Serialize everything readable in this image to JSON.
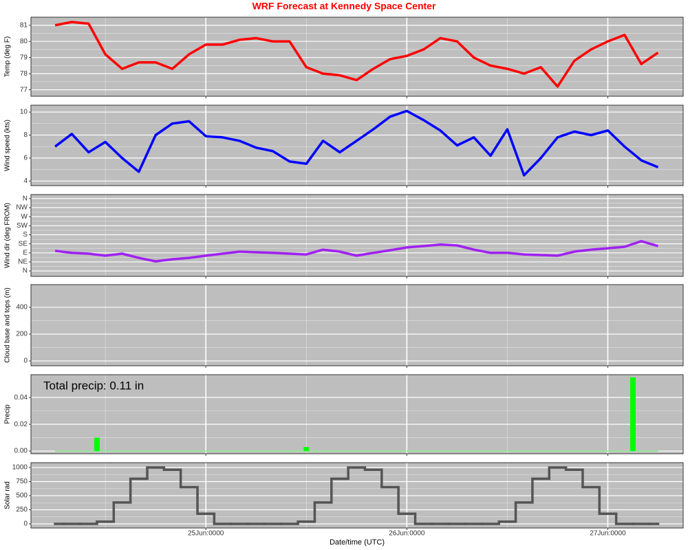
{
  "chart_data": [
    {
      "type": "line",
      "title": "WRF Forecast at Kennedy Space Center",
      "ylabel": "Temp (deg F)",
      "color": "#ff0000",
      "x": [
        "24Jun:0600",
        "24Jun:0800",
        "24Jun:1000",
        "24Jun:1200",
        "24Jun:1400",
        "24Jun:1600",
        "24Jun:1800",
        "24Jun:2000",
        "24Jun:2200",
        "25Jun:0000",
        "25Jun:0200",
        "25Jun:0400",
        "25Jun:0600",
        "25Jun:0800",
        "25Jun:1000",
        "25Jun:1200",
        "25Jun:1400",
        "25Jun:1600",
        "25Jun:1800",
        "25Jun:2000",
        "25Jun:2200",
        "26Jun:0000",
        "26Jun:0200",
        "26Jun:0400",
        "26Jun:0600",
        "26Jun:0800",
        "26Jun:1000",
        "26Jun:1200",
        "26Jun:1400",
        "26Jun:1600",
        "26Jun:1800",
        "26Jun:2000",
        "26Jun:2200",
        "27Jun:0000",
        "27Jun:0200",
        "27Jun:0400",
        "27Jun:0600"
      ],
      "values": [
        81.0,
        81.2,
        81.1,
        79.2,
        78.3,
        78.7,
        78.7,
        78.3,
        79.2,
        79.8,
        79.8,
        80.1,
        80.2,
        80.0,
        80.0,
        78.4,
        78.0,
        77.9,
        77.6,
        78.3,
        78.9,
        79.1,
        79.5,
        80.2,
        80.0,
        79.0,
        78.5,
        78.3,
        78.0,
        78.4,
        77.2,
        78.8,
        79.5,
        80.0,
        80.4,
        78.6,
        79.3
      ],
      "ylim": [
        76.6,
        81.5
      ],
      "yticks": [
        77,
        78,
        79,
        80,
        81
      ],
      "grid": true
    },
    {
      "type": "line",
      "ylabel": "Wind speed (kts)",
      "color": "#0000ff",
      "x": [
        "24Jun:0600",
        "24Jun:0800",
        "24Jun:1000",
        "24Jun:1200",
        "24Jun:1400",
        "24Jun:1600",
        "24Jun:1800",
        "24Jun:2000",
        "24Jun:2200",
        "25Jun:0000",
        "25Jun:0200",
        "25Jun:0400",
        "25Jun:0600",
        "25Jun:0800",
        "25Jun:1000",
        "25Jun:1200",
        "25Jun:1400",
        "25Jun:1600",
        "25Jun:1800",
        "25Jun:2000",
        "25Jun:2200",
        "26Jun:0000",
        "26Jun:0200",
        "26Jun:0400",
        "26Jun:0600",
        "26Jun:0800",
        "26Jun:1000",
        "26Jun:1200",
        "26Jun:1400",
        "26Jun:1600",
        "26Jun:1800",
        "26Jun:2000",
        "26Jun:2200",
        "27Jun:0000",
        "27Jun:0200",
        "27Jun:0400",
        "27Jun:0600"
      ],
      "values": [
        7.0,
        8.1,
        6.5,
        7.4,
        6.0,
        4.8,
        8.0,
        9.0,
        9.2,
        7.9,
        7.8,
        7.5,
        6.9,
        6.6,
        5.7,
        5.5,
        7.5,
        6.5,
        7.5,
        8.5,
        9.6,
        10.1,
        9.3,
        8.4,
        7.1,
        7.8,
        6.2,
        8.5,
        4.5,
        6.0,
        7.8,
        8.3,
        8.0,
        8.4,
        7.0,
        5.8,
        5.2
      ],
      "ylim": [
        3.6,
        10.6
      ],
      "yticks": [
        4,
        6,
        8,
        10
      ],
      "grid": true
    },
    {
      "type": "line",
      "ylabel": "Wind dir (deg FROM)",
      "color": "#a020f0",
      "x": [
        "24Jun:0600",
        "24Jun:0800",
        "24Jun:1000",
        "24Jun:1200",
        "24Jun:1400",
        "24Jun:1600",
        "24Jun:1800",
        "24Jun:2000",
        "24Jun:2200",
        "25Jun:0000",
        "25Jun:0200",
        "25Jun:0400",
        "25Jun:0600",
        "25Jun:0800",
        "25Jun:1000",
        "25Jun:1200",
        "25Jun:1400",
        "25Jun:1600",
        "25Jun:1800",
        "25Jun:2000",
        "25Jun:2200",
        "26Jun:0000",
        "26Jun:0200",
        "26Jun:0400",
        "26Jun:0600",
        "26Jun:0800",
        "26Jun:1000",
        "26Jun:1200",
        "26Jun:1400",
        "26Jun:1600",
        "26Jun:1800",
        "26Jun:2000",
        "26Jun:2200",
        "27Jun:0000",
        "27Jun:0200",
        "27Jun:0400",
        "27Jun:0600"
      ],
      "values": [
        100,
        90,
        86,
        76,
        86,
        65,
        48,
        58,
        65,
        76,
        86,
        96,
        93,
        90,
        86,
        82,
        106,
        96,
        76,
        90,
        103,
        117,
        124,
        131,
        127,
        106,
        90,
        90,
        82,
        79,
        76,
        96,
        106,
        113,
        120,
        148,
        124
      ],
      "ylim": [
        -27,
        380
      ],
      "yticks": [
        {
          "value": 0,
          "label": "N"
        },
        {
          "value": 45,
          "label": "NE"
        },
        {
          "value": 90,
          "label": "E"
        },
        {
          "value": 135,
          "label": "SE"
        },
        {
          "value": 180,
          "label": "S"
        },
        {
          "value": 225,
          "label": "SW"
        },
        {
          "value": 270,
          "label": "W"
        },
        {
          "value": 315,
          "label": "NW"
        },
        {
          "value": 360,
          "label": "N"
        }
      ],
      "grid": true
    },
    {
      "type": "line",
      "ylabel": "Cloud base and tops (m)",
      "ylim": [
        -36,
        569
      ],
      "yticks": [
        0,
        200,
        400
      ],
      "grid": true
    },
    {
      "type": "bar",
      "ylabel": "Precip",
      "color": "#00ff00",
      "annotation": "Total precip: 0.11 in",
      "x": [
        "24Jun:0600",
        "24Jun:1100",
        "25Jun:1200",
        "27Jun:0300",
        "27Jun:0600"
      ],
      "values": [
        0,
        0.01,
        0.003,
        0.055,
        0
      ],
      "ylim": [
        -0.002,
        0.057
      ],
      "yticks": [
        {
          "value": 0,
          "label": "0.00"
        },
        {
          "value": 0.02,
          "label": "0.02"
        },
        {
          "value": 0.04,
          "label": "0.04"
        }
      ],
      "grid": true
    },
    {
      "type": "step",
      "ylabel": "Solar rad",
      "color": "#555555",
      "xlabel": "Date/time (UTC)",
      "x": [
        "24Jun:0600",
        "24Jun:0800",
        "24Jun:1000",
        "24Jun:1200",
        "24Jun:1400",
        "24Jun:1600",
        "24Jun:1800",
        "24Jun:2000",
        "24Jun:2200",
        "25Jun:0000",
        "25Jun:0200",
        "25Jun:0400",
        "25Jun:0600",
        "25Jun:0800",
        "25Jun:1000",
        "25Jun:1200",
        "25Jun:1400",
        "25Jun:1600",
        "25Jun:1800",
        "25Jun:2000",
        "25Jun:2200",
        "26Jun:0000",
        "26Jun:0200",
        "26Jun:0400",
        "26Jun:0600",
        "26Jun:0800",
        "26Jun:1000",
        "26Jun:1200",
        "26Jun:1400",
        "26Jun:1600",
        "26Jun:1800",
        "26Jun:2000",
        "26Jun:2200",
        "27Jun:0000",
        "27Jun:0200",
        "27Jun:0400",
        "27Jun:0600"
      ],
      "values": [
        0,
        0,
        0,
        40,
        380,
        800,
        1000,
        960,
        650,
        180,
        0,
        0,
        0,
        0,
        0,
        40,
        380,
        800,
        1000,
        960,
        650,
        180,
        0,
        0,
        0,
        0,
        0,
        40,
        380,
        800,
        1000,
        960,
        650,
        180,
        0,
        0,
        0
      ],
      "ylim": [
        -73,
        1085
      ],
      "yticks": [
        0,
        250,
        500,
        750,
        1000
      ],
      "grid": true,
      "xlim": [
        "24Jun:0307",
        "27Jun:0900"
      ],
      "xticks": [
        "25Jun:0000",
        "26Jun:0000",
        "27Jun:0000"
      ]
    }
  ]
}
